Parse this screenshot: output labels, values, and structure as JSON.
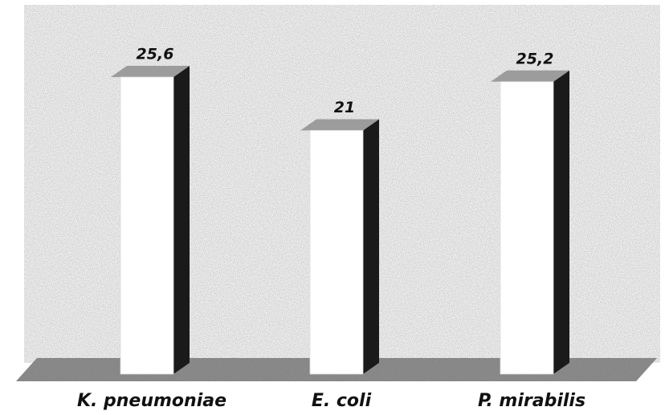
{
  "chart_data": {
    "type": "bar3d",
    "categories": [
      "K. pneumoniae",
      "E. coli",
      "P. mirabilis"
    ],
    "values": [
      25.6,
      21,
      25.2
    ],
    "value_labels": [
      "25,6",
      "21",
      "25,2"
    ],
    "color": "#ffffff"
  }
}
